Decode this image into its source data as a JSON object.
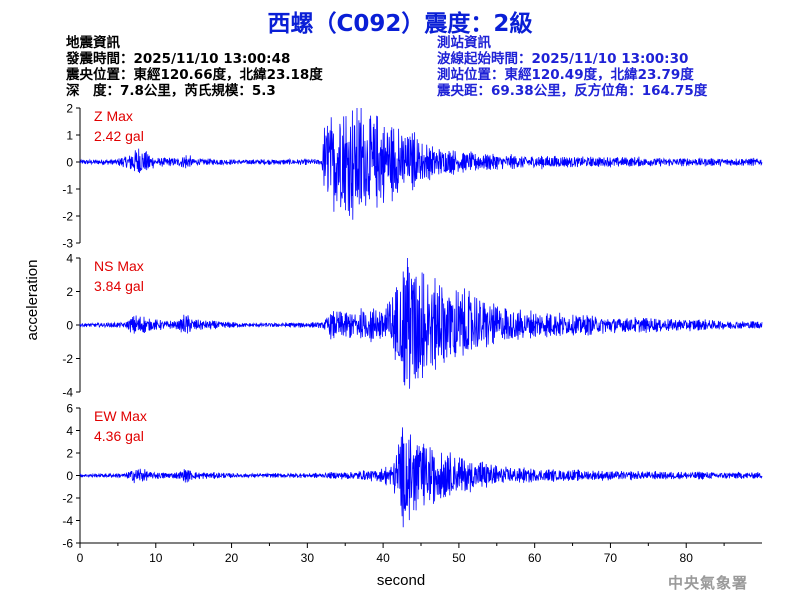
{
  "header": {
    "title": "西螺（C092）震度：2級"
  },
  "quake_info": {
    "heading": "地震資訊",
    "origin_time": "發震時間：2025/11/10 13:00:48",
    "epicenter": "震央位置：東經120.66度，北緯23.18度",
    "depth_mag": "深　度：7.8公里，芮氏規模：5.3"
  },
  "station_info": {
    "heading": "測站資訊",
    "wave_start": "波線起始時間：2025/11/10 13:00:30",
    "station_pos": "測站位置：東經120.49度，北緯23.79度",
    "distance": "震央距：69.38公里，反方位角：164.75度"
  },
  "footer": {
    "agency": "中央氣象署"
  },
  "colors": {
    "trace": "#0000ff",
    "max_label": "#e00000",
    "title": "#0a1fd6"
  },
  "chart_data": {
    "type": "line",
    "xlabel": "second",
    "ylabel": "acceleration",
    "xlim": [
      0,
      90
    ],
    "xticks": [
      0,
      10,
      20,
      30,
      40,
      50,
      60,
      70,
      80
    ],
    "panels": [
      {
        "name": "Z",
        "label": "Z Max",
        "max_text": "2.42 gal",
        "max": 2.42,
        "ylim": [
          -3,
          2
        ],
        "yticks": [
          2,
          1,
          0,
          -1,
          -2,
          -3
        ],
        "envelope": [
          [
            0,
            0.08
          ],
          [
            5,
            0.1
          ],
          [
            6.5,
            0.3
          ],
          [
            7.5,
            0.55
          ],
          [
            8.5,
            0.4
          ],
          [
            10,
            0.15
          ],
          [
            13,
            0.15
          ],
          [
            14,
            0.3
          ],
          [
            15,
            0.12
          ],
          [
            22,
            0.08
          ],
          [
            31.8,
            0.1
          ],
          [
            32.3,
            1.3
          ],
          [
            33,
            1.5
          ],
          [
            36,
            1.9
          ],
          [
            40,
            1.3
          ],
          [
            44,
            0.9
          ],
          [
            46,
            0.55
          ],
          [
            50,
            0.35
          ],
          [
            55,
            0.25
          ],
          [
            65,
            0.18
          ],
          [
            80,
            0.14
          ],
          [
            90,
            0.12
          ]
        ]
      },
      {
        "name": "NS",
        "label": "NS Max",
        "max_text": "3.84 gal",
        "max": 3.84,
        "ylim": [
          -4,
          4
        ],
        "yticks": [
          4,
          2,
          0,
          -2,
          -4
        ],
        "envelope": [
          [
            0,
            0.1
          ],
          [
            6,
            0.15
          ],
          [
            7,
            0.5
          ],
          [
            8,
            0.6
          ],
          [
            9,
            0.3
          ],
          [
            13,
            0.2
          ],
          [
            14,
            0.7
          ],
          [
            15,
            0.3
          ],
          [
            22,
            0.1
          ],
          [
            32,
            0.15
          ],
          [
            33,
            0.7
          ],
          [
            40,
            0.9
          ],
          [
            42,
            2.2
          ],
          [
            43,
            3.8
          ],
          [
            45,
            3.0
          ],
          [
            47,
            2.2
          ],
          [
            50,
            2.0
          ],
          [
            53,
            1.4
          ],
          [
            56,
            0.9
          ],
          [
            60,
            0.7
          ],
          [
            70,
            0.45
          ],
          [
            80,
            0.3
          ],
          [
            90,
            0.2
          ]
        ]
      },
      {
        "name": "EW",
        "label": "EW Max",
        "max_text": "4.36 gal",
        "max": 4.36,
        "ylim": [
          -6,
          6
        ],
        "yticks": [
          6,
          4,
          2,
          0,
          -2,
          -4,
          -6
        ],
        "envelope": [
          [
            0,
            0.12
          ],
          [
            6,
            0.2
          ],
          [
            7,
            0.6
          ],
          [
            8,
            0.7
          ],
          [
            9,
            0.3
          ],
          [
            13,
            0.25
          ],
          [
            14,
            0.6
          ],
          [
            15,
            0.3
          ],
          [
            22,
            0.15
          ],
          [
            32,
            0.2
          ],
          [
            35,
            0.3
          ],
          [
            40,
            0.5
          ],
          [
            41.5,
            1.4
          ],
          [
            42.5,
            4.3
          ],
          [
            44,
            2.8
          ],
          [
            47,
            2.0
          ],
          [
            50,
            1.4
          ],
          [
            55,
            0.8
          ],
          [
            60,
            0.5
          ],
          [
            70,
            0.35
          ],
          [
            80,
            0.3
          ],
          [
            90,
            0.25
          ]
        ]
      }
    ]
  }
}
